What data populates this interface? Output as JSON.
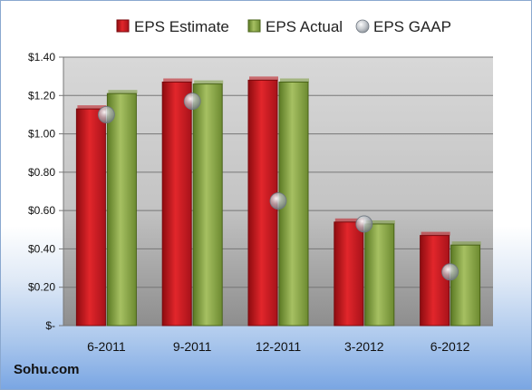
{
  "chart_data": {
    "type": "bar",
    "categories": [
      "6-2011",
      "9-2011",
      "12-2011",
      "3-2012",
      "6-2012"
    ],
    "series": [
      {
        "name": "EPS Estimate",
        "kind": "bar",
        "color": "#c0141b",
        "values": [
          1.13,
          1.27,
          1.28,
          0.54,
          0.47
        ]
      },
      {
        "name": "EPS Actual",
        "kind": "bar",
        "color": "#7a9a3a",
        "values": [
          1.21,
          1.26,
          1.27,
          0.53,
          0.42
        ]
      },
      {
        "name": "EPS GAAP",
        "kind": "marker",
        "color": "#9aa4ae",
        "values": [
          1.1,
          1.17,
          0.65,
          0.53,
          0.28
        ]
      }
    ],
    "yticks": [
      0,
      0.2,
      0.4,
      0.6,
      0.8,
      1.0,
      1.2,
      1.4
    ],
    "ytick_labels": [
      "$-",
      "$0.20",
      "$0.40",
      "$0.60",
      "$0.80",
      "$1.00",
      "$1.20",
      "$1.40"
    ],
    "ylim": [
      0,
      1.4
    ],
    "grid": true,
    "legend_position": "top"
  },
  "source": "Sohu.com"
}
